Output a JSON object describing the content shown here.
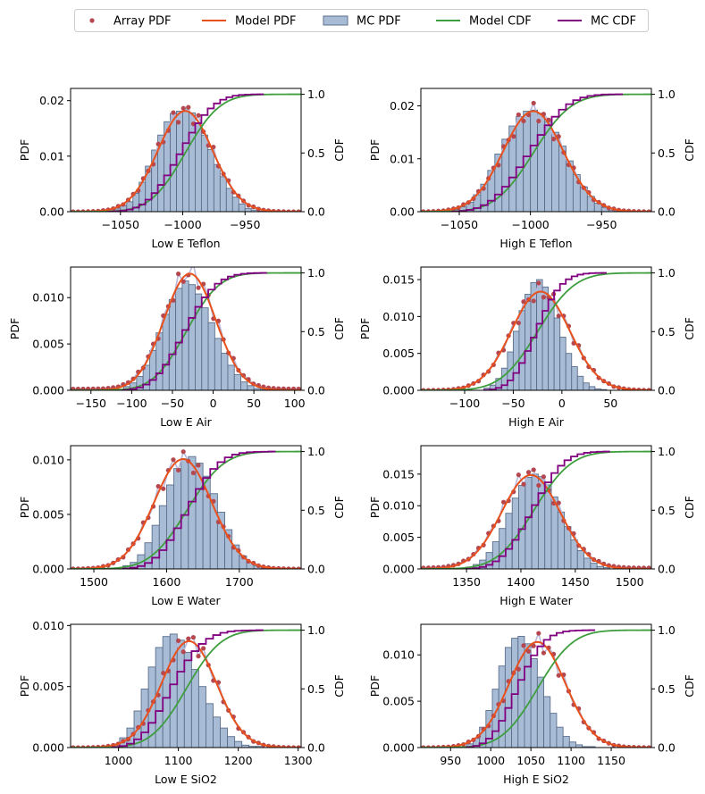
{
  "legend": {
    "location": "top-center",
    "entries": [
      {
        "label": "Array PDF",
        "kind": "marker",
        "color": "#b5474f"
      },
      {
        "label": "Model PDF",
        "kind": "line",
        "color": "#e8501c"
      },
      {
        "label": "MC PDF",
        "kind": "patch",
        "color": "#a9bcd6",
        "edge": "#5b6f8c"
      },
      {
        "label": "Model CDF",
        "kind": "line",
        "color": "#3e9e3e"
      },
      {
        "label": "MC CDF",
        "kind": "line",
        "color": "#800080"
      }
    ]
  },
  "colors": {
    "array_pdf": "#b5474f",
    "array_line": "#b8b8dc",
    "model_pdf": "#e8501c",
    "mc_fill": "#a9bcd6",
    "mc_edge": "#5b6f8c",
    "model_cdf": "#3e9e3e",
    "mc_cdf": "#800080"
  },
  "chart_data": [
    {
      "type": "bar",
      "title": "",
      "xlabel": "Low E Teflon",
      "ylabel": "PDF",
      "y2label": "CDF",
      "mean": -998,
      "sd": 22,
      "skew": 0,
      "xlim": [
        -1090,
        -905
      ],
      "xticks": [
        -1050,
        -1000,
        -950
      ],
      "ylim": [
        0,
        0.0222
      ],
      "yticks": [
        0,
        0.01,
        0.02
      ],
      "ytick_labels": [
        "0.00",
        "0.01",
        "0.02"
      ],
      "y2lim": [
        0,
        1.05
      ],
      "y2ticks": [
        0,
        0.5,
        1.0
      ],
      "y2tick_labels": [
        "0.0",
        "0.5",
        "1.0"
      ],
      "bins": [
        -1060,
        -1055,
        -1050,
        -1045,
        -1040,
        -1035,
        -1030,
        -1025,
        -1020,
        -1015,
        -1010,
        -1005,
        -1000,
        -995,
        -990,
        -985,
        -980,
        -975,
        -970,
        -965,
        -960,
        -955,
        -950,
        -945,
        -940,
        -935
      ],
      "bin_heights": [
        0.0002,
        0.0005,
        0.0011,
        0.0018,
        0.0033,
        0.0053,
        0.0082,
        0.0111,
        0.0138,
        0.0162,
        0.0177,
        0.0181,
        0.0188,
        0.0178,
        0.016,
        0.0138,
        0.0112,
        0.0085,
        0.0063,
        0.0042,
        0.0026,
        0.0014,
        0.0006,
        0.0003,
        0.0001
      ],
      "grid": false
    },
    {
      "type": "bar",
      "title": "",
      "xlabel": "High E Teflon",
      "ylabel": "PDF",
      "y2label": "CDF",
      "mean": -998,
      "sd": 21,
      "skew": 0,
      "xlim": [
        -1077,
        -915
      ],
      "xticks": [
        -1050,
        -1000,
        -950
      ],
      "ylim": [
        0,
        0.0233
      ],
      "yticks": [
        0,
        0.01,
        0.02
      ],
      "ytick_labels": [
        "0.00",
        "0.01",
        "0.02"
      ],
      "y2lim": [
        0,
        1.05
      ],
      "y2ticks": [
        0,
        0.5,
        1.0
      ],
      "y2tick_labels": [
        "0.0",
        "0.5",
        "1.0"
      ],
      "bins": [
        -1055,
        -1050,
        -1045,
        -1040,
        -1035,
        -1030,
        -1025,
        -1020,
        -1015,
        -1010,
        -1005,
        -1000,
        -995,
        -990,
        -985,
        -980,
        -975,
        -970,
        -965,
        -960,
        -955,
        -950,
        -945,
        -940,
        -935
      ],
      "bin_heights": [
        0.0004,
        0.0009,
        0.0018,
        0.0032,
        0.0052,
        0.0078,
        0.0109,
        0.0137,
        0.0162,
        0.018,
        0.019,
        0.0192,
        0.0186,
        0.017,
        0.015,
        0.0124,
        0.0096,
        0.007,
        0.0047,
        0.0029,
        0.0016,
        0.0008,
        0.0003,
        0.0001
      ],
      "grid": false
    },
    {
      "type": "bar",
      "title": "",
      "xlabel": "Low E Air",
      "ylabel": "PDF",
      "y2label": "CDF",
      "mean": -33,
      "sd": 32,
      "skew": 0.4,
      "xlim": [
        -175,
        108
      ],
      "xticks": [
        -150,
        -100,
        -50,
        0,
        50,
        100
      ],
      "ylim": [
        0,
        0.0133
      ],
      "yticks": [
        0,
        0.005,
        0.01
      ],
      "ytick_labels": [
        "0.000",
        "0.005",
        "0.010"
      ],
      "y2lim": [
        0,
        1.05
      ],
      "y2ticks": [
        0,
        0.5,
        1.0
      ],
      "y2tick_labels": [
        "0.0",
        "0.5",
        "1.0"
      ],
      "bins": [
        -110,
        -102,
        -94,
        -86,
        -78,
        -70,
        -62,
        -54,
        -46,
        -38,
        -30,
        -22,
        -14,
        -6,
        2,
        10,
        18,
        26,
        34,
        42,
        50,
        58,
        66
      ],
      "bin_heights": [
        0.0004,
        0.0008,
        0.0015,
        0.0027,
        0.0043,
        0.0062,
        0.0082,
        0.0098,
        0.011,
        0.0118,
        0.0114,
        0.0104,
        0.0089,
        0.0073,
        0.0056,
        0.004,
        0.0027,
        0.0017,
        0.0009,
        0.0005,
        0.0002,
        0.0001
      ],
      "grid": false
    },
    {
      "type": "bar",
      "title": "",
      "xlabel": "High E Air",
      "ylabel": "PDF",
      "y2label": "CDF",
      "mean": -25,
      "sd": 30,
      "skew": 0.3,
      "xlim": [
        -145,
        92
      ],
      "xticks": [
        -100,
        -50,
        0,
        50
      ],
      "ylim": [
        0,
        0.0167
      ],
      "yticks": [
        0,
        0.005,
        0.01,
        0.015
      ],
      "ytick_labels": [
        "0.000",
        "0.005",
        "0.010",
        "0.015"
      ],
      "y2lim": [
        0,
        1.05
      ],
      "y2ticks": [
        0,
        0.5,
        1.0
      ],
      "y2tick_labels": [
        "0.0",
        "0.5",
        "1.0"
      ],
      "bins": [
        -80,
        -74,
        -68,
        -62,
        -56,
        -50,
        -44,
        -38,
        -32,
        -26,
        -20,
        -14,
        -8,
        -2,
        4,
        10,
        16,
        22,
        28,
        34,
        40,
        46
      ],
      "bin_heights": [
        0.0003,
        0.0007,
        0.0016,
        0.003,
        0.0052,
        0.008,
        0.0108,
        0.013,
        0.0146,
        0.015,
        0.014,
        0.0122,
        0.0098,
        0.0072,
        0.005,
        0.0032,
        0.0019,
        0.001,
        0.0005,
        0.0002,
        0.0001
      ],
      "grid": false
    },
    {
      "type": "bar",
      "title": "",
      "xlabel": "Low E Water",
      "ylabel": "PDF",
      "y2label": "CDF",
      "mean": 1628,
      "sd": 40,
      "skew": -0.4,
      "xlim": [
        1468,
        1785
      ],
      "xticks": [
        1500,
        1600,
        1700
      ],
      "ylim": [
        0,
        0.0113
      ],
      "yticks": [
        0,
        0.005,
        0.01
      ],
      "ytick_labels": [
        "0.000",
        "0.005",
        "0.010"
      ],
      "y2lim": [
        0,
        1.05
      ],
      "y2ticks": [
        0,
        0.5,
        1.0
      ],
      "y2tick_labels": [
        "0.0",
        "0.5",
        "1.0"
      ],
      "bins": [
        1540,
        1550,
        1560,
        1570,
        1580,
        1590,
        1600,
        1610,
        1620,
        1630,
        1640,
        1650,
        1660,
        1670,
        1680,
        1690,
        1700,
        1710,
        1720,
        1730,
        1740,
        1750
      ],
      "bin_heights": [
        0.0003,
        0.0006,
        0.0013,
        0.0024,
        0.004,
        0.0058,
        0.0077,
        0.0092,
        0.0101,
        0.0103,
        0.0097,
        0.0085,
        0.0069,
        0.0052,
        0.0036,
        0.0022,
        0.0012,
        0.0006,
        0.0003,
        0.0001,
        0.0001
      ],
      "grid": false
    },
    {
      "type": "bar",
      "title": "",
      "xlabel": "High E Water",
      "ylabel": "PDF",
      "y2label": "CDF",
      "mean": 1412,
      "sd": 27,
      "skew": -0.3,
      "xlim": [
        1308,
        1520
      ],
      "xticks": [
        1350,
        1400,
        1450,
        1500
      ],
      "ylim": [
        0,
        0.0195
      ],
      "yticks": [
        0,
        0.005,
        0.01,
        0.015
      ],
      "ytick_labels": [
        "0.000",
        "0.005",
        "0.010",
        "0.015"
      ],
      "y2lim": [
        0,
        1.05
      ],
      "y2ticks": [
        0,
        0.5,
        1.0
      ],
      "y2tick_labels": [
        "0.0",
        "0.5",
        "1.0"
      ],
      "bins": [
        1350,
        1356,
        1362,
        1368,
        1374,
        1380,
        1386,
        1392,
        1398,
        1404,
        1410,
        1416,
        1422,
        1428,
        1434,
        1440,
        1446,
        1452,
        1458,
        1464,
        1470,
        1476,
        1482
      ],
      "bin_heights": [
        0.0003,
        0.0007,
        0.0014,
        0.0026,
        0.0043,
        0.0064,
        0.0088,
        0.0112,
        0.0132,
        0.0145,
        0.015,
        0.0146,
        0.0133,
        0.0114,
        0.009,
        0.0067,
        0.0046,
        0.0029,
        0.0017,
        0.0009,
        0.0004,
        0.0002
      ],
      "grid": false
    },
    {
      "type": "bar",
      "title": "",
      "xlabel": "Low E SiO2",
      "ylabel": "PDF",
      "y2label": "CDF",
      "mean": 1113,
      "sd": 46,
      "skew": 0.3,
      "xlim": [
        920,
        1305
      ],
      "xticks": [
        1000,
        1100,
        1200,
        1300
      ],
      "ylim": [
        0,
        0.0101
      ],
      "yticks": [
        0,
        0.005,
        0.01
      ],
      "ytick_labels": [
        "0.000",
        "0.005",
        "0.010"
      ],
      "y2lim": [
        0,
        1.05
      ],
      "y2ticks": [
        0,
        0.5,
        1.0
      ],
      "y2tick_labels": [
        "0.0",
        "0.5",
        "1.0"
      ],
      "bins": [
        990,
        1002,
        1014,
        1026,
        1038,
        1050,
        1062,
        1074,
        1086,
        1098,
        1110,
        1122,
        1134,
        1146,
        1158,
        1170,
        1182,
        1194,
        1206,
        1218,
        1230,
        1242
      ],
      "bin_heights": [
        0.0003,
        0.0008,
        0.0016,
        0.003,
        0.0048,
        0.0066,
        0.0082,
        0.0091,
        0.0093,
        0.0088,
        0.0078,
        0.0064,
        0.005,
        0.0036,
        0.0025,
        0.0016,
        0.0009,
        0.0005,
        0.0002,
        0.0001,
        0.0001
      ],
      "grid": false
    },
    {
      "type": "bar",
      "title": "",
      "xlabel": "High E SiO2",
      "ylabel": "PDF",
      "y2label": "CDF",
      "mean": 1058,
      "sd": 35,
      "skew": 0,
      "xlim": [
        913,
        1200
      ],
      "xticks": [
        950,
        1000,
        1050,
        1100,
        1150
      ],
      "ylim": [
        0,
        0.0133
      ],
      "yticks": [
        0,
        0.005,
        0.01
      ],
      "ytick_labels": [
        "0.000",
        "0.005",
        "0.010"
      ],
      "y2lim": [
        0,
        1.05
      ],
      "y2ticks": [
        0,
        0.5,
        1.0
      ],
      "y2tick_labels": [
        "0.0",
        "0.5",
        "1.0"
      ],
      "bins": [
        970,
        978,
        986,
        994,
        1002,
        1010,
        1018,
        1026,
        1034,
        1042,
        1050,
        1058,
        1066,
        1074,
        1082,
        1090,
        1098,
        1106,
        1114,
        1122,
        1130
      ],
      "bin_heights": [
        0.0004,
        0.001,
        0.0022,
        0.004,
        0.0063,
        0.0088,
        0.0108,
        0.0118,
        0.012,
        0.0112,
        0.0096,
        0.0076,
        0.0055,
        0.0037,
        0.0022,
        0.0012,
        0.0006,
        0.0003,
        0.0001,
        0.0001
      ],
      "grid": false
    }
  ]
}
